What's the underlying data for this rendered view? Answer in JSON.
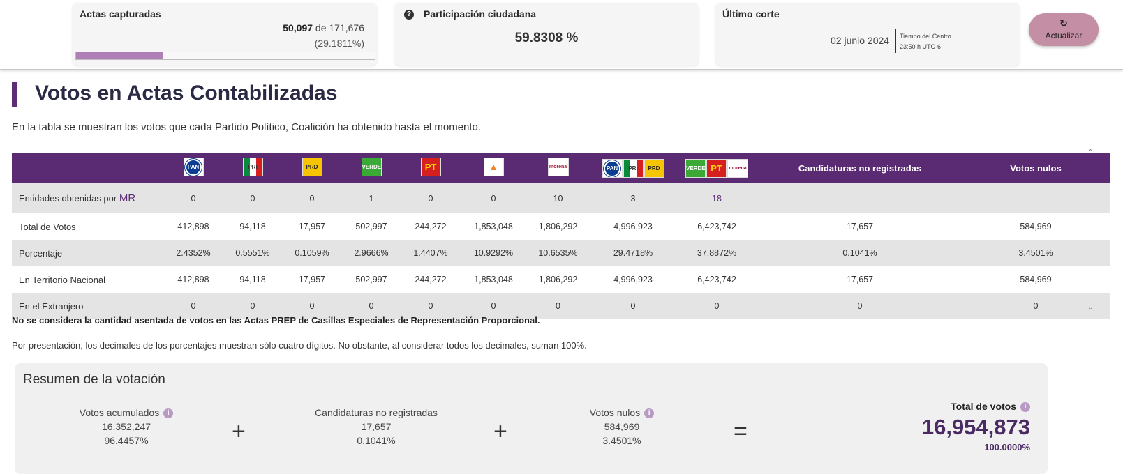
{
  "header": {
    "actas": {
      "title": "Actas capturadas",
      "captured": "50,097",
      "of_text": "de 171,676",
      "percent": "(29.1811%)",
      "progress_fraction": 0.291811
    },
    "participacion": {
      "title": "Participación ciudadana",
      "value": "59.8308 %"
    },
    "corte": {
      "title": "Último corte",
      "date": "02 junio 2024",
      "tz_line1": "Tiempo del Centro",
      "tz_line2": "23:50 h UTC-6"
    },
    "refresh_label": "Actualizar"
  },
  "main": {
    "title": "Votos en Actas Contabilizadas",
    "description": "En la tabla se muestran los votos que cada Partido Político, Coalición ha obtenido hasta el momento."
  },
  "table": {
    "logos": {
      "pan": "PAN",
      "pri": "PRI",
      "prd": "PRD",
      "verde": "VERDE",
      "pt": "PT",
      "mc": "MC",
      "morena": "morena"
    },
    "headers": {
      "no_registradas": "Candidaturas no registradas",
      "nulos": "Votos nulos"
    },
    "rows": [
      {
        "label": "Entidades obtenidas por",
        "label_suffix": "MR",
        "values": [
          "0",
          "0",
          "0",
          "1",
          "0",
          "0",
          "10",
          "3",
          "18",
          "-",
          "-"
        ]
      },
      {
        "label": "Total de Votos",
        "values": [
          "412,898",
          "94,118",
          "17,957",
          "502,997",
          "244,272",
          "1,853,048",
          "1,806,292",
          "4,996,923",
          "6,423,742",
          "17,657",
          "584,969"
        ]
      },
      {
        "label": "Porcentaje",
        "values": [
          "2.4352%",
          "0.5551%",
          "0.1059%",
          "2.9666%",
          "1.4407%",
          "10.9292%",
          "10.6535%",
          "29.4718%",
          "37.8872%",
          "0.1041%",
          "3.4501%"
        ]
      },
      {
        "label": "En Territorio Nacional",
        "values": [
          "412,898",
          "94,118",
          "17,957",
          "502,997",
          "244,272",
          "1,853,048",
          "1,806,292",
          "4,996,923",
          "6,423,742",
          "17,657",
          "584,969"
        ]
      },
      {
        "label": "En el Extranjero",
        "values": [
          "0",
          "0",
          "0",
          "0",
          "0",
          "0",
          "0",
          "0",
          "0",
          "0",
          "0"
        ]
      }
    ]
  },
  "notes": {
    "bold": "No se considera la cantidad asentada de votos en las Actas PREP de Casillas Especiales de Representación Proporcional.",
    "regular": "Por presentación, los decimales de los porcentajes muestran sólo cuatro dígitos. No obstante, al considerar todos los decimales, suman 100%."
  },
  "summary": {
    "title": "Resumen de la votación",
    "acumulados": {
      "label": "Votos acumulados",
      "value": "16,352,247",
      "percent": "96.4457%"
    },
    "no_registradas": {
      "label": "Candidaturas no registradas",
      "value": "17,657",
      "percent": "0.1041%"
    },
    "nulos": {
      "label": "Votos nulos",
      "value": "584,969",
      "percent": "3.4501%"
    },
    "plus": "+",
    "equals": "=",
    "total": {
      "label": "Total de votos",
      "value": "16,954,873",
      "percent": "100.0000%"
    }
  },
  "colors": {
    "brand_purple": "#5a2a73",
    "progress": "#b07fb8",
    "refresh_button": "#c48fa4"
  },
  "icons": {
    "help": "question-circle-icon",
    "refresh": "refresh-icon",
    "info": "info-circle-icon"
  }
}
